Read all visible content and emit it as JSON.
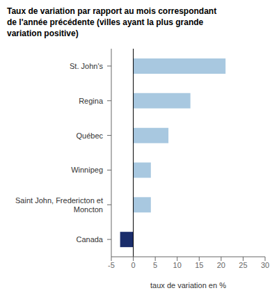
{
  "chart_data": {
    "type": "bar",
    "orientation": "horizontal",
    "title": "Taux de variation par rapport au mois correspondant\nde l'année précédente (villes ayant la plus grande\nvariation positive)",
    "categories": [
      "St. John's",
      "Regina",
      "Québec",
      "Winnipeg",
      "Saint John, Fredericton et\nMoncton",
      "Canada"
    ],
    "values": [
      21.0,
      13.0,
      8.0,
      4.0,
      4.0,
      -3.0
    ],
    "colors": [
      "#a8c8e0",
      "#a8c8e0",
      "#a8c8e0",
      "#a8c8e0",
      "#a8c8e0",
      "#1a2d6b"
    ],
    "xlim": [
      -5,
      30
    ],
    "xticks": [
      -5,
      0,
      5,
      10,
      15,
      20,
      25,
      30
    ],
    "xlabel": "taux de variation en %",
    "grid": false
  }
}
